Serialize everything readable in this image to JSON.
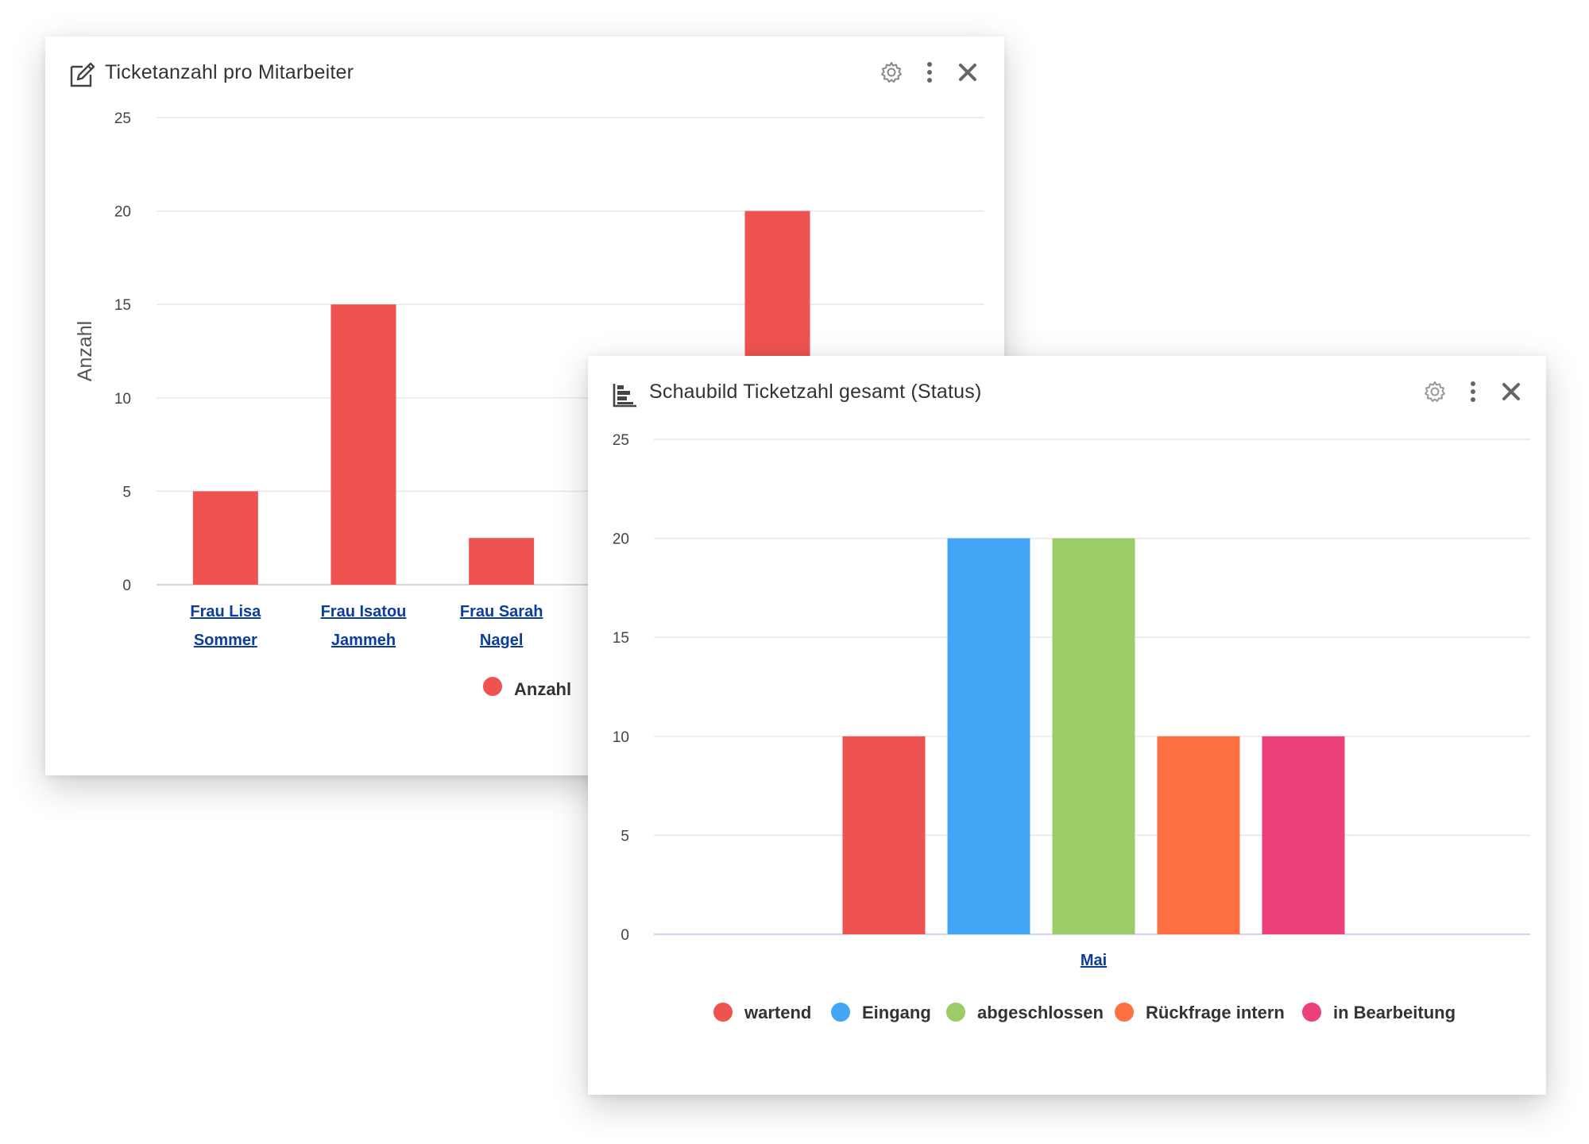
{
  "chart_data": [
    {
      "type": "bar",
      "title": "Ticketanzahl pro Mitarbeiter",
      "ylabel": "Anzahl",
      "xlabel": "",
      "ylim": [
        0,
        25
      ],
      "yticks": [
        "0",
        "5",
        "10",
        "15",
        "20",
        "25"
      ],
      "categories": [
        [
          "Frau Lisa",
          "Sommer"
        ],
        [
          "Frau Isatou",
          "Jammeh"
        ],
        [
          "Frau Sarah",
          "Nagel"
        ],
        [
          "",
          ""
        ],
        [
          "",
          ""
        ],
        [
          "",
          ""
        ]
      ],
      "series": [
        {
          "name": "Anzahl",
          "color": "#ee5351",
          "values": [
            5,
            15,
            2.5,
            null,
            20,
            null
          ]
        }
      ],
      "legend": "bottom",
      "grid": true
    },
    {
      "type": "bar",
      "title": "Schaubild Ticketzahl gesamt (Status)",
      "xlabel": "",
      "ylabel": "",
      "ylim": [
        0,
        25
      ],
      "yticks": [
        "0",
        "5",
        "10",
        "15",
        "20",
        "25"
      ],
      "categories": [
        "Mai"
      ],
      "series": [
        {
          "name": "wartend",
          "color": "#ee5351",
          "values": [
            10
          ]
        },
        {
          "name": "Eingang",
          "color": "#42a5f5",
          "values": [
            20
          ]
        },
        {
          "name": "abgeschlossen",
          "color": "#9ccc65",
          "values": [
            20
          ]
        },
        {
          "name": "Rückfrage intern",
          "color": "#ff7043",
          "values": [
            10
          ]
        },
        {
          "name": "in Bearbeitung",
          "color": "#ec407a",
          "values": [
            10
          ]
        }
      ],
      "legend": "bottom",
      "grid": true
    }
  ],
  "icons": {
    "card1_title": "edit-icon",
    "card2_title": "bar-chart-icon",
    "settings": "gear-icon",
    "more": "more-vertical-icon",
    "close": "close-icon"
  },
  "colors": {
    "link": "#0b3c9e",
    "grid": "#e6e6e6",
    "axis": "#ccd6eb",
    "text": "#333333",
    "tick": "#444444"
  }
}
